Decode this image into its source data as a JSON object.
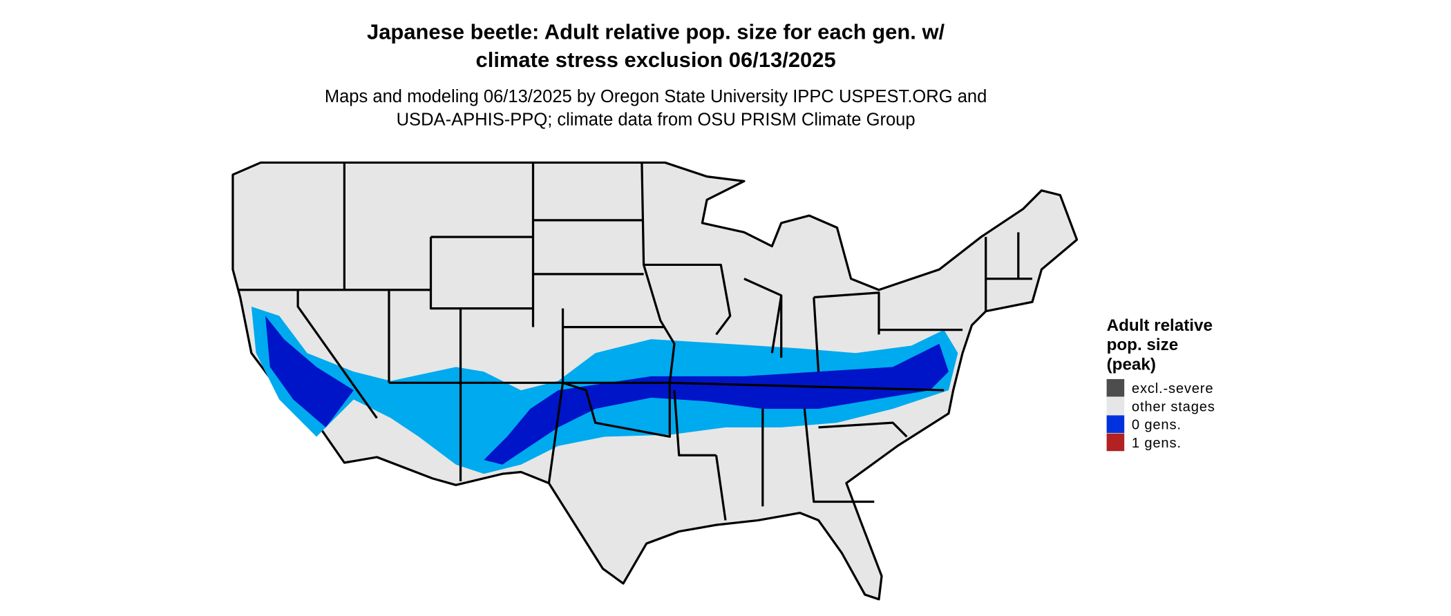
{
  "title": [
    "Japanese beetle: Adult relative pop. size for each gen. w/",
    "climate stress exclusion 06/13/2025"
  ],
  "subtitle": [
    "Maps and modeling 06/13/2025 by Oregon State University IPPC USPEST.ORG and",
    "USDA-APHIS-PPQ; climate data from OSU PRISM Climate Group"
  ],
  "legend": {
    "title": [
      "Adult relative",
      "pop. size",
      "(peak)"
    ],
    "items": [
      {
        "label": "excl.-severe",
        "color": "#4d4d4d"
      },
      {
        "label": "other stages",
        "color": "#e6e6e6"
      },
      {
        "label": "0 gens.",
        "color": "#0033dd"
      },
      {
        "label": "1 gens.",
        "color": "#b22222"
      }
    ]
  }
}
